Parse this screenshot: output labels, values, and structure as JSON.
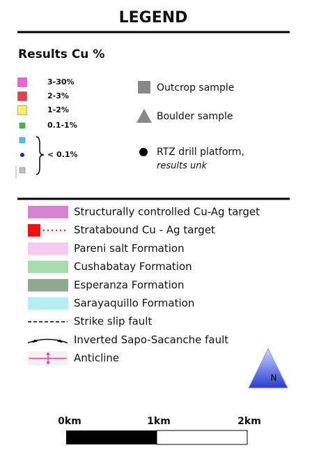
{
  "title": "LEGEND",
  "results": {
    "heading": "Results Cu %",
    "classes": [
      {
        "label": "3-30%",
        "color": "#f060e0"
      },
      {
        "label": "2-3%",
        "color": "#e84050"
      },
      {
        "label": "1-2%",
        "color": "#f8f060"
      },
      {
        "label": "0.1-1%",
        "color": "#30c040"
      }
    ],
    "low": {
      "label": "< 0.1%",
      "colors": [
        "#40c8f0",
        "#2020c0",
        "#c0c0c0"
      ]
    }
  },
  "samples": [
    {
      "label": "Outcrop sample"
    },
    {
      "label": "Boulder sample"
    },
    {
      "label": "RTZ drill platform,",
      "note": "results unk"
    }
  ],
  "units": [
    {
      "label": "Structurally controlled Cu-Ag target",
      "color": "#d484d0"
    },
    {
      "label": "Stratabound Cu - Ag target",
      "color": "#ee1111"
    },
    {
      "label": "Pareni salt Formation",
      "color": "#f4cbee"
    },
    {
      "label": "Cushabatay Formation",
      "color": "#a9dbb1"
    },
    {
      "label": "Esperanza Formation",
      "color": "#8ea990"
    },
    {
      "label": "Sarayaquillo Formation",
      "color": "#b4eef0"
    },
    {
      "label": "Strike slip fault"
    },
    {
      "label": "Inverted Sapo-Sacanche fault"
    },
    {
      "label": "Anticline",
      "color": "#e040a0"
    }
  ],
  "north": "N",
  "scale": {
    "labels": [
      "0km",
      "1km",
      "2km"
    ]
  }
}
